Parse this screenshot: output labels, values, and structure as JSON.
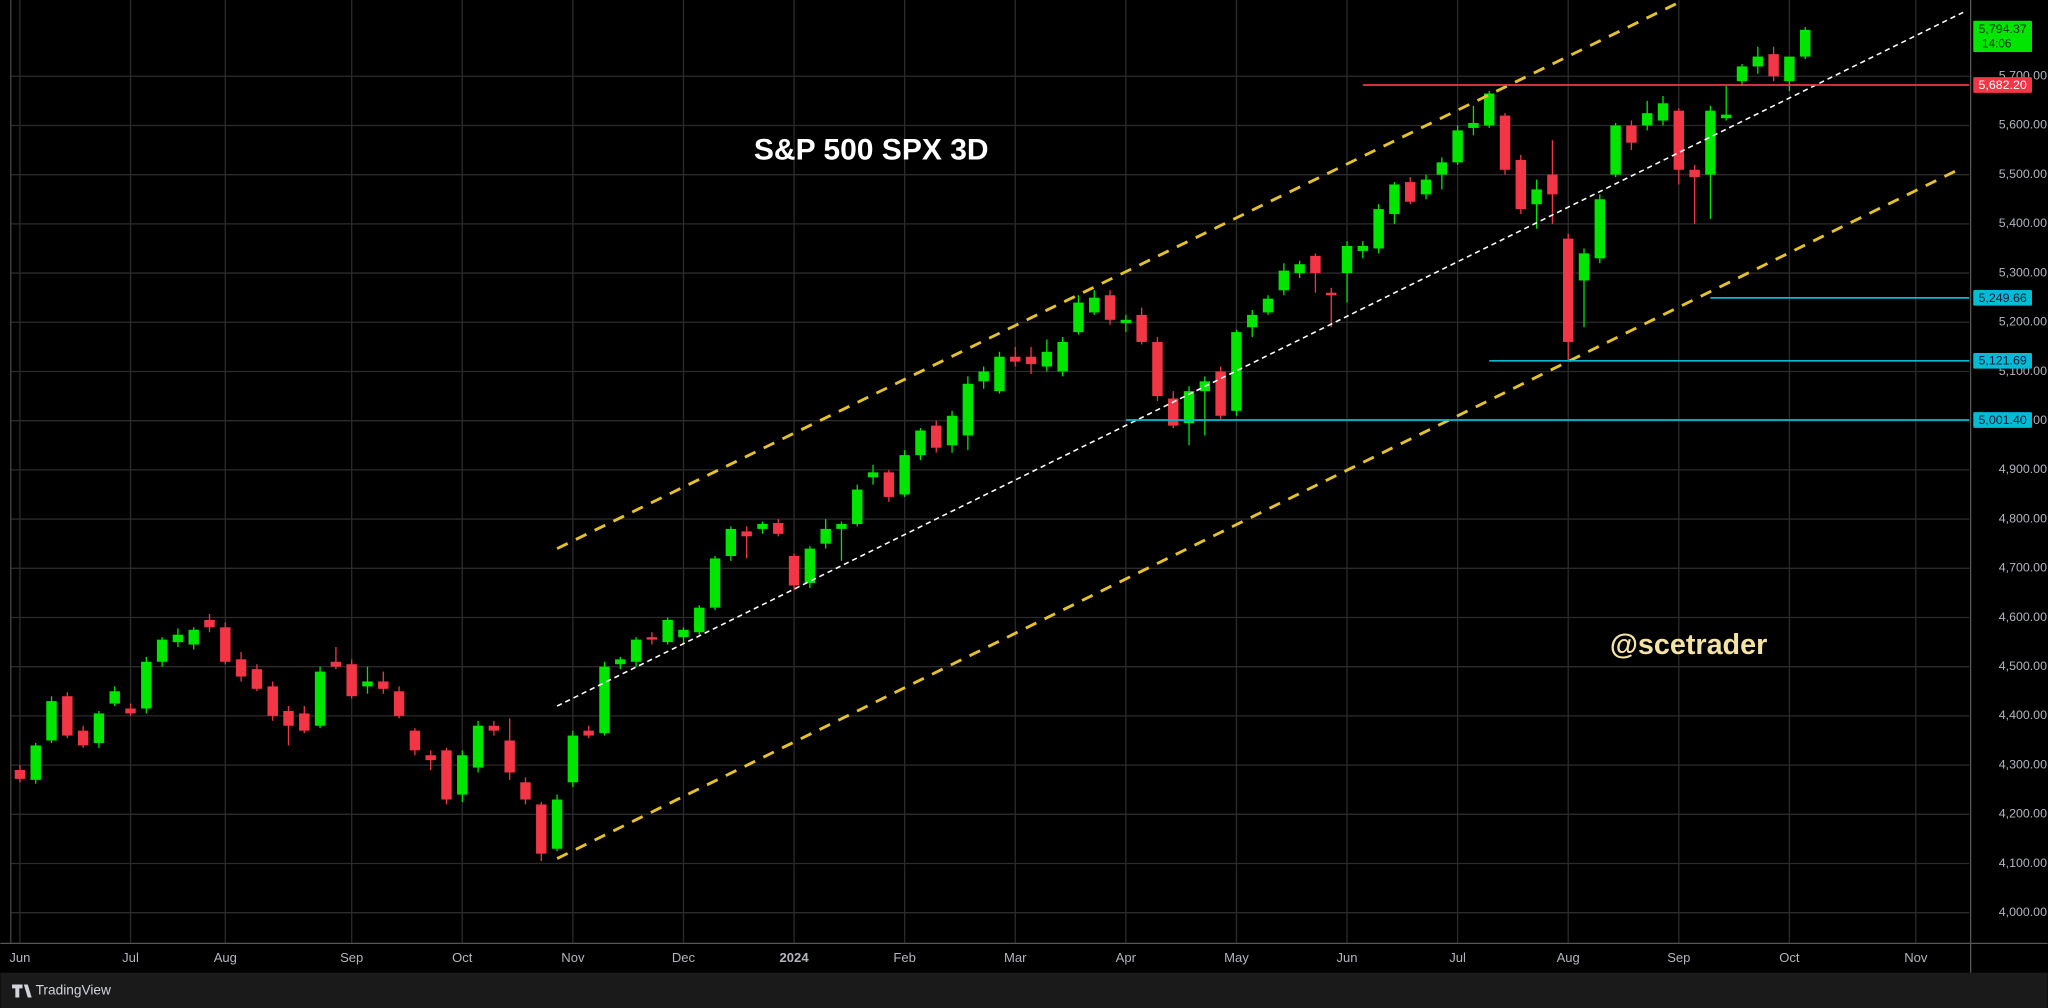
{
  "chart_data": {
    "type": "candlestick",
    "title": "S&P 500 SPX 3D",
    "watermark": "@scetrader",
    "up_color": "#00e600",
    "down_color": "#f23645",
    "grid": true,
    "open": [
      4290,
      4270,
      4350,
      4440,
      4370,
      4345,
      4425,
      4415,
      4415,
      4510,
      4550,
      4545,
      4595,
      4580,
      4515,
      4495,
      4460,
      4410,
      4405,
      4380,
      4510,
      4505,
      4460,
      4470,
      4450,
      4370,
      4320,
      4330,
      4240,
      4295,
      4380,
      4350,
      4265,
      4220,
      4130,
      4265,
      4370,
      4365,
      4505,
      4510,
      4560,
      4550,
      4560,
      4570,
      4620,
      4725,
      4775,
      4780,
      4792,
      4725,
      4670,
      4750,
      4780,
      4790,
      4885,
      4895,
      4850,
      4930,
      4990,
      4950,
      4970,
      5080,
      5060,
      5130,
      5130,
      5110,
      5100,
      5180,
      5220,
      5255,
      5198,
      5215,
      5160,
      5045,
      4995,
      5060,
      5100,
      5020,
      5190,
      5220,
      5265,
      5300,
      5335,
      5260,
      5300,
      5345,
      5350,
      5420,
      5485,
      5460,
      5500,
      5525,
      5595,
      5600,
      5620,
      5530,
      5440,
      5500,
      5370,
      5285,
      5330,
      5500,
      5600,
      5600,
      5610,
      5630,
      5510,
      5500,
      5615,
      5690,
      5720,
      5745,
      5690,
      5740
    ],
    "high": [
      4300,
      4345,
      4440,
      4448,
      4380,
      4410,
      4460,
      4425,
      4520,
      4560,
      4578,
      4580,
      4607,
      4590,
      4530,
      4505,
      4470,
      4420,
      4420,
      4500,
      4540,
      4515,
      4500,
      4490,
      4460,
      4375,
      4330,
      4335,
      4330,
      4390,
      4390,
      4395,
      4275,
      4225,
      4240,
      4370,
      4380,
      4510,
      4520,
      4560,
      4570,
      4600,
      4580,
      4625,
      4725,
      4785,
      4785,
      4795,
      4800,
      4730,
      4745,
      4800,
      4795,
      4870,
      4910,
      4900,
      4940,
      4985,
      5000,
      5020,
      5090,
      5110,
      5140,
      5150,
      5150,
      5165,
      5170,
      5255,
      5265,
      5265,
      5215,
      5230,
      5170,
      5060,
      5070,
      5090,
      5110,
      5185,
      5225,
      5255,
      5320,
      5325,
      5340,
      5270,
      5365,
      5365,
      5440,
      5485,
      5495,
      5500,
      5535,
      5600,
      5640,
      5670,
      5625,
      5540,
      5490,
      5570,
      5380,
      5350,
      5460,
      5605,
      5610,
      5650,
      5660,
      5635,
      5520,
      5640,
      5680,
      5725,
      5760,
      5760,
      5740,
      5800
    ],
    "low": [
      4265,
      4262,
      4345,
      4355,
      4335,
      4335,
      4420,
      4400,
      4405,
      4500,
      4540,
      4535,
      4570,
      4505,
      4470,
      4450,
      4390,
      4340,
      4365,
      4375,
      4495,
      4435,
      4445,
      4445,
      4395,
      4320,
      4290,
      4220,
      4225,
      4285,
      4360,
      4270,
      4220,
      4105,
      4125,
      4255,
      4355,
      4360,
      4495,
      4500,
      4545,
      4545,
      4545,
      4565,
      4615,
      4715,
      4720,
      4770,
      4765,
      4655,
      4660,
      4740,
      4715,
      4785,
      4870,
      4835,
      4845,
      4920,
      4935,
      4935,
      4940,
      5065,
      5055,
      5110,
      5095,
      5100,
      5090,
      5175,
      5215,
      5195,
      5180,
      5155,
      5040,
      4985,
      4950,
      4970,
      5000,
      5010,
      5170,
      5215,
      5255,
      5290,
      5260,
      5190,
      5240,
      5330,
      5340,
      5400,
      5440,
      5450,
      5470,
      5520,
      5580,
      5595,
      5500,
      5420,
      5390,
      5400,
      5120,
      5190,
      5320,
      5495,
      5550,
      5590,
      5600,
      5480,
      5400,
      5410,
      5610,
      5680,
      5705,
      5690,
      5670,
      5735
    ],
    "close": [
      4272,
      4340,
      4430,
      4360,
      4340,
      4405,
      4450,
      4405,
      4510,
      4555,
      4565,
      4575,
      4580,
      4510,
      4480,
      4455,
      4400,
      4380,
      4370,
      4490,
      4500,
      4440,
      4470,
      4455,
      4400,
      4330,
      4310,
      4230,
      4320,
      4380,
      4370,
      4285,
      4230,
      4120,
      4230,
      4360,
      4360,
      4500,
      4515,
      4555,
      4555,
      4595,
      4575,
      4620,
      4720,
      4780,
      4765,
      4790,
      4770,
      4665,
      4740,
      4780,
      4790,
      4860,
      4895,
      4845,
      4930,
      4980,
      4945,
      5010,
      5075,
      5100,
      5130,
      5120,
      5115,
      5140,
      5160,
      5240,
      5250,
      5205,
      5205,
      5160,
      5050,
      4990,
      5060,
      5080,
      5010,
      5180,
      5215,
      5248,
      5305,
      5318,
      5300,
      5255,
      5355,
      5355,
      5430,
      5480,
      5445,
      5490,
      5525,
      5590,
      5605,
      5665,
      5510,
      5430,
      5470,
      5460,
      5160,
      5340,
      5450,
      5600,
      5565,
      5625,
      5645,
      5510,
      5495,
      5630,
      5622,
      5720,
      5740,
      5700,
      5740,
      5794.37
    ],
    "ylim": [
      3939,
      5855
    ],
    "yticks": [
      {
        "value": 4000,
        "label": "4,000.00"
      },
      {
        "value": 4100,
        "label": "4,100.00"
      },
      {
        "value": 4200,
        "label": "4,200.00"
      },
      {
        "value": 4300,
        "label": "4,300.00"
      },
      {
        "value": 4400,
        "label": "4,400.00"
      },
      {
        "value": 4500,
        "label": "4,500.00"
      },
      {
        "value": 4600,
        "label": "4,600.00"
      },
      {
        "value": 4700,
        "label": "4,700.00"
      },
      {
        "value": 4800,
        "label": "4,800.00"
      },
      {
        "value": 4900,
        "label": "4,900.00"
      },
      {
        "value": 5000,
        "label": "5,000.00"
      },
      {
        "value": 5100,
        "label": "5,100.00"
      },
      {
        "value": 5200,
        "label": "5,200.00"
      },
      {
        "value": 5300,
        "label": "5,300.00"
      },
      {
        "value": 5400,
        "label": "5,400.00"
      },
      {
        "value": 5500,
        "label": "5,500.00"
      },
      {
        "value": 5600,
        "label": "5,600.00"
      },
      {
        "value": 5700,
        "label": "5,700.00"
      }
    ],
    "xticks": [
      {
        "value": 0,
        "label": "Jun"
      },
      {
        "value": 7,
        "label": "Jul"
      },
      {
        "value": 13,
        "label": "Aug"
      },
      {
        "value": 21,
        "label": "Sep"
      },
      {
        "value": 28,
        "label": "Oct"
      },
      {
        "value": 35,
        "label": "Nov"
      },
      {
        "value": 42,
        "label": "Dec"
      },
      {
        "value": 49,
        "label": "2024"
      },
      {
        "value": 56,
        "label": "Feb"
      },
      {
        "value": 63,
        "label": "Mar"
      },
      {
        "value": 70,
        "label": "Apr"
      },
      {
        "value": 77,
        "label": "May"
      },
      {
        "value": 84,
        "label": "Jun"
      },
      {
        "value": 91,
        "label": "Jul"
      },
      {
        "value": 98,
        "label": "Aug"
      },
      {
        "value": 105,
        "label": "Sep"
      },
      {
        "value": 112,
        "label": "Oct"
      },
      {
        "value": 120,
        "label": "Nov"
      }
    ],
    "trendlines": [
      {
        "color": "#e6c229",
        "points": [
          [
            34,
            4740
          ],
          [
            105,
            5850
          ]
        ]
      },
      {
        "color": "#ffffff",
        "points": [
          [
            34,
            4420
          ],
          [
            123,
            5830
          ]
        ]
      },
      {
        "color": "#e6c229",
        "points": [
          [
            34,
            4110
          ],
          [
            123,
            5515
          ]
        ]
      }
    ],
    "levels": [
      {
        "value": 5682.2,
        "label": "5,682.20",
        "color": "#f23645",
        "text_color": "#ffffff",
        "from": 85
      },
      {
        "value": 5249.66,
        "label": "5,249.66",
        "color": "#00bcd4",
        "text_color": "#0b1a3a",
        "from": 107
      },
      {
        "value": 5121.69,
        "label": "5,121.69",
        "color": "#00bcd4",
        "text_color": "#0b1a3a",
        "from": 93
      },
      {
        "value": 5001.4,
        "label": "5,001.40",
        "color": "#00bcd4",
        "text_color": "#0b1a3a",
        "from": 70
      }
    ],
    "last_price": {
      "value": 5794.37,
      "label": "5,794.37",
      "countdown": "14:06",
      "color": "#00e600"
    }
  },
  "brand": "TradingView"
}
